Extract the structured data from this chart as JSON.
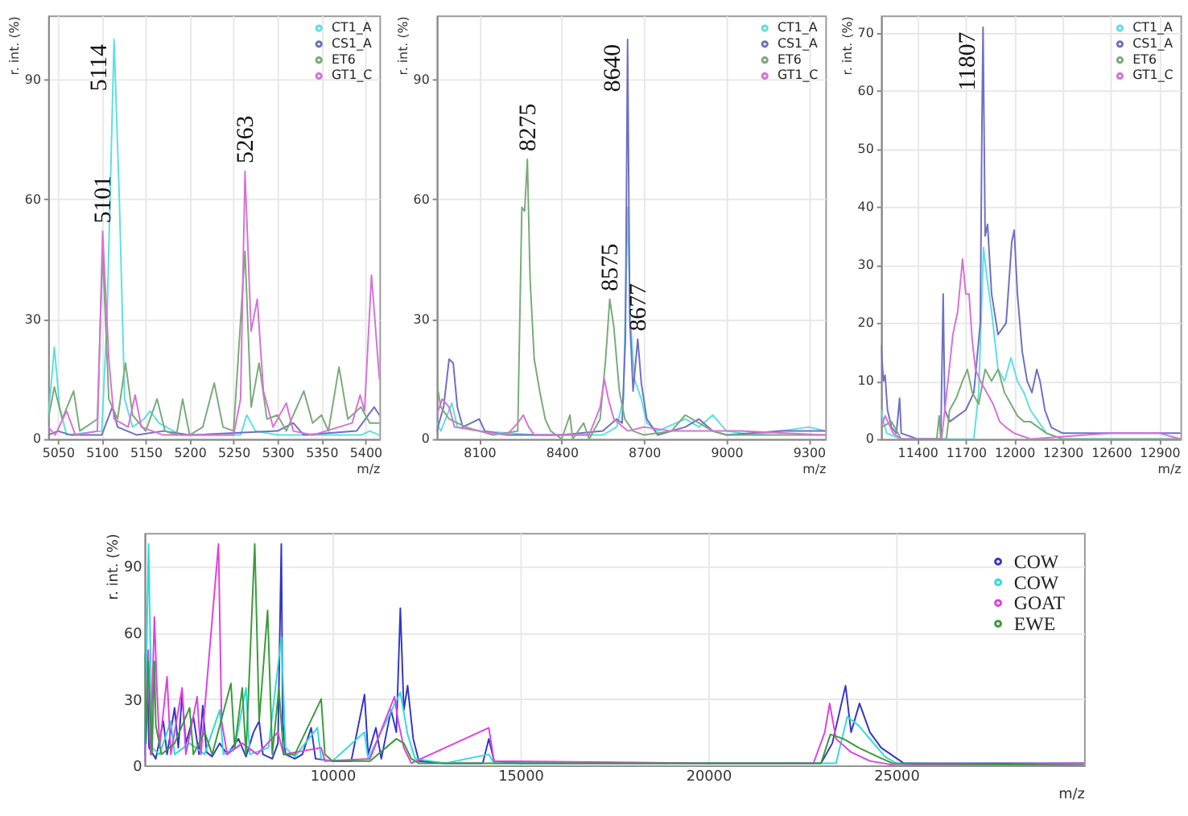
{
  "chart_data": [
    {
      "type": "line",
      "xlabel": "m/z",
      "ylabel": "r. int. (%)",
      "xlim": [
        5039,
        5416
      ],
      "xticks": [
        5050,
        5100,
        5150,
        5200,
        5250,
        5300,
        5350,
        5400
      ],
      "ylim": [
        0,
        106
      ],
      "yticks": [
        0,
        30,
        60,
        90
      ],
      "grid": true,
      "legend": "top right",
      "series": [
        {
          "name": "CT1_A",
          "color": "#5ce0e0",
          "x": [
            5039,
            5046,
            5052,
            5060,
            5100,
            5106,
            5114,
            5120,
            5126,
            5135,
            5148,
            5155,
            5165,
            5190,
            5258,
            5265,
            5275,
            5300,
            5395,
            5405,
            5416
          ],
          "values": [
            5,
            23,
            8,
            1,
            2,
            30,
            100,
            60,
            10,
            3,
            5,
            7,
            4,
            1,
            1,
            6,
            2,
            1,
            1,
            2,
            1
          ]
        },
        {
          "name": "CS1_A",
          "color": "#6f6fc4",
          "x": [
            5039,
            5050,
            5065,
            5100,
            5112,
            5118,
            5140,
            5170,
            5200,
            5300,
            5318,
            5330,
            5390,
            5410,
            5416
          ],
          "values": [
            1,
            2,
            1,
            1,
            8,
            3,
            1,
            2,
            1,
            2,
            4,
            1,
            2,
            8,
            6
          ]
        },
        {
          "name": "ET6",
          "color": "#7aaa7a",
          "x": [
            5039,
            5046,
            5055,
            5068,
            5075,
            5095,
            5101,
            5108,
            5118,
            5127,
            5135,
            5150,
            5163,
            5172,
            5185,
            5192,
            5200,
            5215,
            5228,
            5238,
            5250,
            5263,
            5270,
            5279,
            5288,
            5300,
            5310,
            5330,
            5340,
            5350,
            5358,
            5370,
            5380,
            5395,
            5405,
            5416
          ],
          "values": [
            5,
            13,
            5,
            12,
            2,
            5,
            47,
            10,
            5,
            19,
            6,
            2,
            10,
            2,
            1,
            10,
            1,
            3,
            14,
            3,
            2,
            47,
            8,
            19,
            5,
            6,
            2,
            12,
            4,
            6,
            2,
            18,
            5,
            8,
            4,
            4
          ]
        },
        {
          "name": "GT1_C",
          "color": "#d672d6",
          "x": [
            5039,
            5047,
            5060,
            5070,
            5095,
            5101,
            5108,
            5114,
            5130,
            5138,
            5145,
            5170,
            5250,
            5258,
            5263,
            5270,
            5277,
            5284,
            5295,
            5310,
            5318,
            5340,
            5385,
            5394,
            5399,
            5407,
            5416
          ],
          "values": [
            3,
            1,
            7,
            1,
            2,
            52,
            20,
            5,
            3,
            11,
            3,
            1,
            1,
            10,
            67,
            27,
            35,
            12,
            3,
            9,
            2,
            1,
            4,
            11,
            7,
            41,
            15
          ]
        }
      ],
      "annotations": [
        {
          "text": "5101",
          "x": 5101,
          "y": 52
        },
        {
          "text": "5114",
          "x": 5114,
          "y": 100
        },
        {
          "text": "5263",
          "x": 5263,
          "y": 67
        }
      ]
    },
    {
      "type": "line",
      "xlabel": "m/z",
      "ylabel": "r. int. (%)",
      "xlim": [
        7945,
        9360
      ],
      "xticks": [
        8100,
        8400,
        8700,
        9000,
        9300
      ],
      "ylim": [
        0,
        106
      ],
      "yticks": [
        0,
        30,
        60,
        90
      ],
      "grid": true,
      "legend": "top right",
      "series": [
        {
          "name": "CT1_A",
          "color": "#5ce0e0",
          "x": [
            7945,
            7960,
            8000,
            8020,
            8100,
            8300,
            8550,
            8600,
            8625,
            8640,
            8650,
            8665,
            8690,
            8710,
            8750,
            8850,
            8900,
            8950,
            9000,
            9100,
            9300,
            9360
          ],
          "values": [
            4,
            2,
            9,
            3,
            2,
            1,
            1,
            3,
            10,
            58,
            30,
            15,
            10,
            4,
            2,
            5,
            3,
            6,
            2,
            1,
            3,
            2
          ]
        },
        {
          "name": "CS1_A",
          "color": "#6f6fc4",
          "x": [
            7945,
            7970,
            7990,
            8005,
            8020,
            8040,
            8100,
            8120,
            8200,
            8400,
            8550,
            8600,
            8620,
            8632,
            8640,
            8648,
            8660,
            8677,
            8690,
            8710,
            8750,
            8850,
            8900,
            8950,
            9000,
            9200,
            9360
          ],
          "values": [
            2,
            8,
            20,
            19,
            8,
            3,
            5,
            2,
            1,
            1,
            2,
            5,
            4,
            25,
            100,
            30,
            12,
            25,
            14,
            5,
            1,
            3,
            5,
            2,
            1,
            2,
            2
          ]
        },
        {
          "name": "ET6",
          "color": "#7aaa7a",
          "x": [
            7945,
            7960,
            7990,
            8050,
            8100,
            8150,
            8240,
            8255,
            8265,
            8275,
            8285,
            8300,
            8320,
            8340,
            8360,
            8400,
            8430,
            8440,
            8480,
            8500,
            8540,
            8560,
            8575,
            8590,
            8610,
            8630,
            8660,
            8700,
            8800,
            8850,
            8900,
            8950,
            9000,
            9360
          ],
          "values": [
            14,
            8,
            5,
            3,
            2,
            1,
            2,
            58,
            57,
            70,
            40,
            20,
            12,
            5,
            2,
            0,
            6,
            0,
            4,
            0,
            5,
            20,
            35,
            28,
            12,
            5,
            2,
            1,
            2,
            6,
            4,
            2,
            1,
            1
          ]
        },
        {
          "name": "GT1_C",
          "color": "#d672d6",
          "x": [
            7945,
            7965,
            7990,
            8010,
            8100,
            8200,
            8240,
            8260,
            8280,
            8300,
            8500,
            8540,
            8555,
            8570,
            8590,
            8640,
            8700,
            8800,
            8900,
            9050,
            9360
          ],
          "values": [
            6,
            10,
            8,
            3,
            2,
            1,
            4,
            6,
            3,
            1,
            1,
            8,
            15,
            10,
            5,
            2,
            3,
            2,
            2,
            2,
            1
          ]
        }
      ],
      "annotations": [
        {
          "text": "8275",
          "x": 8275,
          "y": 70
        },
        {
          "text": "8640",
          "x": 8640,
          "y": 100
        },
        {
          "text": "8575",
          "x": 8575,
          "y": 35
        },
        {
          "text": "8677",
          "x": 8677,
          "y": 25
        }
      ]
    },
    {
      "type": "line",
      "xlabel": "m/z",
      "ylabel": "r. int. (%)",
      "xlim": [
        11175,
        13030
      ],
      "xticks": [
        11400,
        11700,
        12000,
        12300,
        12600,
        12900
      ],
      "ylim": [
        0,
        73
      ],
      "yticks": [
        0,
        10,
        20,
        30,
        40,
        50,
        60,
        70
      ],
      "grid": true,
      "legend": "top right",
      "series": [
        {
          "name": "CT1_A",
          "color": "#5ce0e0",
          "x": [
            11175,
            11190,
            11210,
            11300,
            11750,
            11780,
            11810,
            11830,
            11860,
            11900,
            11940,
            11980,
            12020,
            12060,
            12100,
            12150,
            12200,
            12300,
            13030
          ],
          "values": [
            5,
            3,
            1,
            0,
            0,
            8,
            33,
            28,
            22,
            12,
            10,
            14,
            10,
            8,
            5,
            3,
            1,
            0,
            0
          ]
        },
        {
          "name": "CS1_A",
          "color": "#6f6fc4",
          "x": [
            11175,
            11190,
            11200,
            11215,
            11240,
            11270,
            11290,
            11300,
            11400,
            11545,
            11560,
            11570,
            11600,
            11700,
            11750,
            11790,
            11800,
            11807,
            11820,
            11835,
            11860,
            11900,
            11950,
            11985,
            12000,
            12020,
            12050,
            12080,
            12110,
            12140,
            12160,
            12190,
            12230,
            12300,
            12500,
            13030
          ],
          "values": [
            16,
            10,
            11,
            5,
            2,
            1,
            7,
            1,
            0,
            0,
            25,
            5,
            3,
            5,
            8,
            20,
            54,
            71,
            35,
            37,
            25,
            18,
            20,
            34,
            36,
            25,
            15,
            10,
            8,
            12,
            10,
            5,
            2,
            1,
            1,
            1
          ]
        },
        {
          "name": "ET6",
          "color": "#7aaa7a",
          "x": [
            11175,
            11240,
            11300,
            11520,
            11535,
            11545,
            11580,
            11600,
            11640,
            11680,
            11710,
            11740,
            11780,
            11820,
            11860,
            11900,
            11940,
            11980,
            12020,
            12060,
            12100,
            12150,
            12200,
            12300,
            13030
          ],
          "values": [
            2,
            3,
            0,
            0,
            4,
            0,
            0,
            5,
            7,
            10,
            12,
            8,
            6,
            12,
            10,
            12,
            8,
            6,
            4,
            3,
            3,
            2,
            1,
            0,
            0
          ]
        },
        {
          "name": "GT1_C",
          "color": "#d672d6",
          "x": [
            11175,
            11200,
            11250,
            11300,
            11550,
            11590,
            11620,
            11650,
            11680,
            11700,
            11720,
            11740,
            11760,
            11790,
            11830,
            11870,
            11910,
            11950,
            12000,
            12100,
            12600,
            12900,
            13030
          ],
          "values": [
            2,
            4,
            1,
            0,
            0,
            10,
            18,
            22,
            31,
            25,
            25,
            17,
            12,
            10,
            8,
            6,
            3,
            2,
            1,
            0,
            1,
            1,
            0
          ]
        }
      ],
      "annotations": [
        {
          "text": "11807",
          "x": 11807,
          "y": 71
        }
      ]
    },
    {
      "type": "line",
      "xlabel": "m/z",
      "ylabel": "r. int. (%)",
      "xlim": [
        5000,
        30000
      ],
      "xticks": [
        10000,
        15000,
        20000,
        25000
      ],
      "ylim": [
        0,
        105
      ],
      "yticks": [
        0,
        30,
        60,
        90
      ],
      "grid": true,
      "legend": "top right",
      "series": [
        {
          "name": "COW",
          "color": "#3535c8",
          "x": [
            5000,
            5060,
            5120,
            5300,
            5500,
            5600,
            5800,
            5900,
            6000,
            6100,
            6300,
            6450,
            6550,
            6650,
            6800,
            7000,
            7200,
            7500,
            7700,
            7900,
            8050,
            8150,
            8400,
            8550,
            8640,
            8677,
            8750,
            9000,
            9200,
            9435,
            9550,
            10000,
            10500,
            10854,
            10950,
            11157,
            11300,
            11560,
            11700,
            11807,
            11900,
            12000,
            12150,
            12300,
            13000,
            14000,
            14161,
            14300,
            15000,
            18000,
            22000,
            23000,
            23300,
            23653,
            23800,
            24025,
            24300,
            24600,
            25200,
            30000
          ],
          "values": [
            5,
            52,
            8,
            3,
            20,
            5,
            26,
            8,
            32,
            10,
            22,
            5,
            27,
            6,
            4,
            10,
            5,
            12,
            4,
            15,
            20,
            5,
            3,
            10,
            100,
            20,
            5,
            3,
            5,
            17,
            3,
            2,
            2,
            32,
            5,
            17,
            3,
            25,
            15,
            71,
            25,
            36,
            12,
            2,
            1,
            1,
            12,
            2,
            1,
            1,
            1,
            1,
            10,
            36,
            15,
            28,
            15,
            8,
            1,
            1
          ]
        },
        {
          "name": "COW",
          "color": "#30dada",
          "x": [
            5000,
            5108,
            5200,
            5400,
            5700,
            5800,
            6200,
            6600,
            7000,
            7100,
            7400,
            7700,
            7800,
            8300,
            8640,
            8750,
            9000,
            9600,
            9700,
            10000,
            10850,
            10950,
            11807,
            12000,
            12200,
            13000,
            14161,
            14300,
            20000,
            23400,
            23700,
            24000,
            24300,
            24700,
            25000,
            30000
          ],
          "values": [
            3,
            100,
            8,
            5,
            20,
            5,
            10,
            5,
            25,
            5,
            8,
            35,
            5,
            8,
            58,
            8,
            4,
            17,
            3,
            2,
            15,
            3,
            33,
            14,
            3,
            1,
            5,
            1,
            1,
            1,
            22,
            18,
            12,
            4,
            1,
            0
          ]
        },
        {
          "name": "GOAT",
          "color": "#e040e0",
          "x": [
            5000,
            5101,
            5160,
            5263,
            5330,
            5400,
            5600,
            5700,
            6000,
            6100,
            6400,
            6500,
            6968,
            7050,
            7200,
            7600,
            8000,
            8550,
            8700,
            9700,
            9800,
            11000,
            11650,
            11750,
            11900,
            12100,
            14161,
            14300,
            20000,
            22800,
            23100,
            23230,
            23400,
            23800,
            24300,
            25000,
            30000
          ],
          "values": [
            2,
            52,
            5,
            67,
            35,
            8,
            40,
            5,
            35,
            5,
            31,
            5,
            100,
            20,
            5,
            10,
            5,
            15,
            5,
            8,
            2,
            3,
            31,
            20,
            8,
            1,
            17,
            2,
            1,
            1,
            15,
            28,
            12,
            6,
            2,
            0,
            1
          ]
        },
        {
          "name": "EWE",
          "color": "#3a9a3a",
          "x": [
            5000,
            5040,
            5101,
            5200,
            5263,
            5300,
            5450,
            5800,
            6200,
            6300,
            6600,
            6800,
            7300,
            7400,
            7600,
            7700,
            7933,
            8050,
            8275,
            8400,
            8575,
            8700,
            9000,
            9700,
            9800,
            10000,
            11000,
            11700,
            11900,
            12100,
            12300,
            16000,
            20000,
            23000,
            23250,
            23600,
            24000,
            24500,
            24900,
            30000
          ],
          "values": [
            50,
            10,
            47,
            5,
            47,
            18,
            5,
            10,
            26,
            5,
            15,
            5,
            37,
            8,
            35,
            5,
            100,
            20,
            70,
            5,
            35,
            5,
            5,
            30,
            5,
            2,
            2,
            12,
            10,
            3,
            1,
            1,
            1,
            1,
            14,
            12,
            8,
            4,
            1,
            0
          ]
        }
      ]
    }
  ]
}
